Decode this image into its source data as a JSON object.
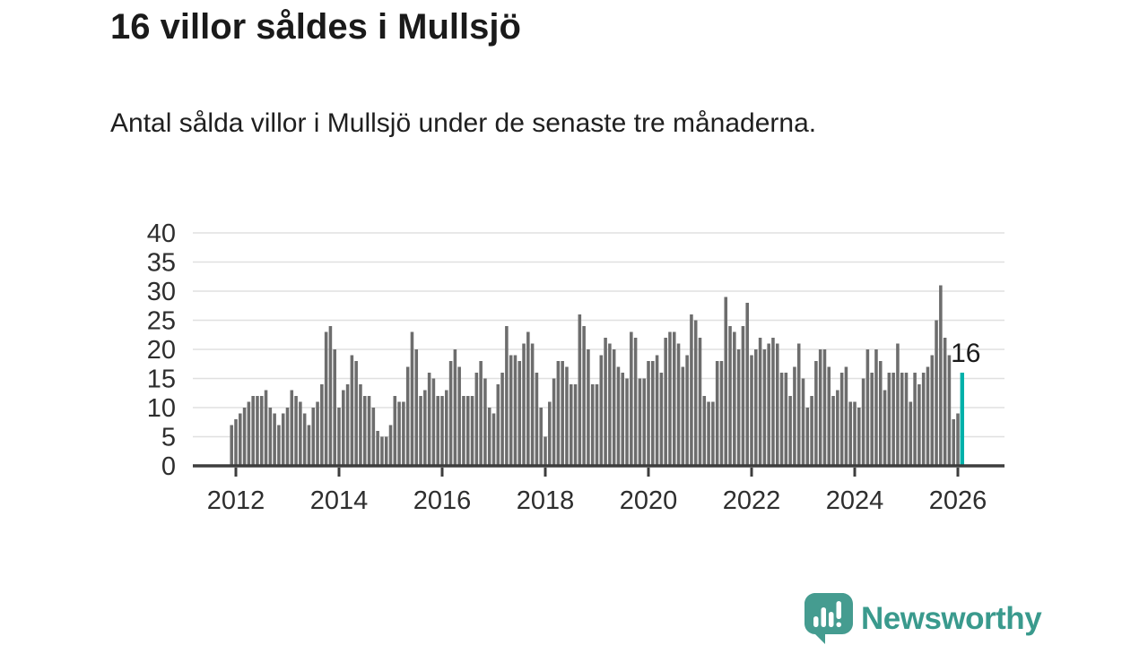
{
  "header": {
    "title": "16 villor såldes i Mullsjö",
    "subtitle": "Antal sålda villor i Mullsjö under de senaste tre månaderna."
  },
  "chart_data": {
    "type": "bar",
    "title": "16 villor såldes i Mullsjö",
    "subtitle": "Antal sålda villor i Mullsjö under de senaste tre månaderna.",
    "frequency": "monthly",
    "start": "2011-12",
    "end": "2026-02",
    "values": [
      7,
      8,
      9,
      10,
      11,
      12,
      12,
      12,
      13,
      10,
      9,
      7,
      9,
      10,
      13,
      12,
      11,
      9,
      7,
      10,
      11,
      14,
      23,
      24,
      20,
      10,
      13,
      14,
      19,
      18,
      14,
      12,
      12,
      10,
      6,
      5,
      5,
      7,
      12,
      11,
      11,
      17,
      23,
      20,
      12,
      13,
      16,
      15,
      12,
      12,
      13,
      18,
      20,
      17,
      12,
      12,
      12,
      16,
      18,
      15,
      10,
      9,
      14,
      16,
      24,
      19,
      19,
      18,
      21,
      23,
      21,
      16,
      10,
      5,
      11,
      15,
      18,
      18,
      17,
      14,
      14,
      26,
      24,
      20,
      14,
      14,
      19,
      22,
      21,
      20,
      17,
      16,
      15,
      23,
      22,
      15,
      15,
      18,
      18,
      19,
      16,
      22,
      23,
      23,
      21,
      17,
      19,
      26,
      25,
      22,
      12,
      11,
      11,
      18,
      18,
      29,
      24,
      23,
      20,
      24,
      28,
      19,
      20,
      22,
      20,
      21,
      22,
      21,
      16,
      16,
      12,
      17,
      21,
      15,
      10,
      12,
      18,
      20,
      20,
      17,
      12,
      13,
      16,
      17,
      11,
      11,
      10,
      15,
      20,
      16,
      20,
      18,
      13,
      16,
      16,
      21,
      16,
      16,
      11,
      16,
      14,
      16,
      17,
      19,
      25,
      31,
      22,
      19,
      8,
      9,
      16
    ],
    "highlight": {
      "index": 170,
      "value": 16,
      "label": "16"
    },
    "ylim": [
      0,
      40
    ],
    "yticks": [
      0,
      5,
      10,
      15,
      20,
      25,
      30,
      35,
      40
    ],
    "xticks": [
      "2012",
      "2014",
      "2016",
      "2018",
      "2020",
      "2022",
      "2024",
      "2026"
    ],
    "grid": true,
    "legend": "none",
    "colors": {
      "bar": "#6d6d6d",
      "highlight": "#00b1aa",
      "gridline": "#e0e0e0",
      "axis": "#3d3d3d",
      "tick_text": "#2e2e2e",
      "annotation_text": "#1a1a1a"
    }
  },
  "footer": {
    "brand": "Newsworthy",
    "logo_icon": "bar-chart-speech-bubble-icon",
    "brand_color": "#3a9a8d",
    "icon_color": "#459c90"
  }
}
